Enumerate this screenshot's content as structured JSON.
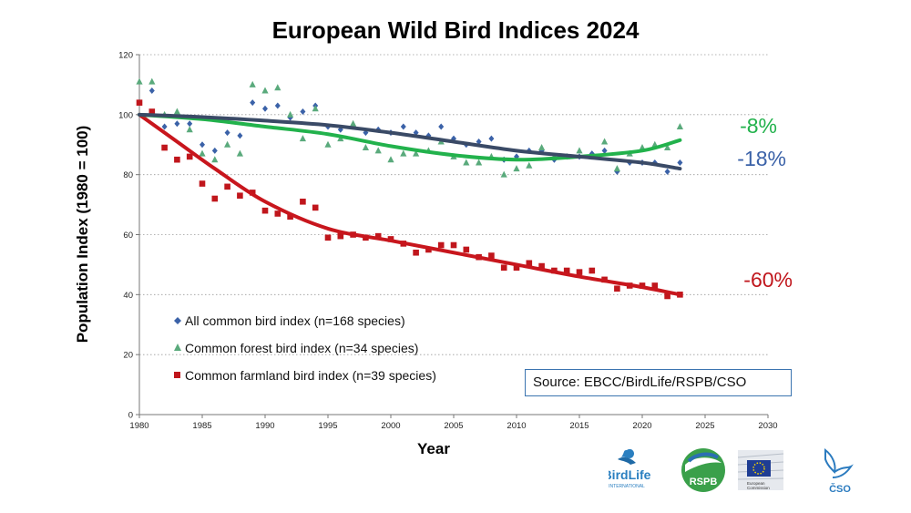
{
  "chart_data": {
    "type": "scatter",
    "title": "European Wild Bird Indices 2024",
    "xlabel": "Year",
    "ylabel": "Population Index (1980 = 100)",
    "xlim": [
      1980,
      2030
    ],
    "ylim": [
      0,
      120
    ],
    "x_ticks": [
      "1980",
      "1985",
      "1990",
      "1995",
      "2000",
      "2005",
      "2010",
      "2015",
      "2020",
      "2025",
      "2030"
    ],
    "y_ticks": [
      "0",
      "20",
      "40",
      "60",
      "80",
      "100",
      "120"
    ],
    "grid": "horizontal dotted",
    "legend_position": "bottom-left",
    "series": [
      {
        "name": "All common bird index (n=168 species)",
        "marker": "diamond",
        "color": "#3b62a8",
        "trend_color": "#3a4a66",
        "change_label": "-18%",
        "x": [
          1980,
          1981,
          1982,
          1983,
          1984,
          1985,
          1986,
          1987,
          1988,
          1989,
          1990,
          1991,
          1992,
          1993,
          1994,
          1995,
          1996,
          1997,
          1998,
          1999,
          2000,
          2001,
          2002,
          2003,
          2004,
          2005,
          2006,
          2007,
          2008,
          2009,
          2010,
          2011,
          2012,
          2013,
          2014,
          2015,
          2016,
          2017,
          2018,
          2019,
          2020,
          2021,
          2022,
          2023
        ],
        "y": [
          104,
          108,
          96,
          97,
          97,
          90,
          88,
          94,
          93,
          104,
          102,
          103,
          99,
          101,
          103,
          96,
          95,
          96,
          94,
          95,
          94,
          96,
          94,
          93,
          96,
          92,
          90,
          91,
          92,
          85,
          86,
          88,
          88,
          85,
          86,
          86,
          87,
          88,
          81,
          84,
          84,
          84,
          81,
          84
        ],
        "trend_x": [
          1980,
          1985,
          1990,
          1995,
          2000,
          2005,
          2010,
          2015,
          2020,
          2023
        ],
        "trend_y": [
          100,
          99.2,
          98,
          96.5,
          94,
          91,
          88,
          86,
          84,
          82
        ]
      },
      {
        "name": "Common forest bird index (n=34 species)",
        "marker": "triangle",
        "color": "#5aaa7c",
        "trend_color": "#22b24c",
        "change_label": "-8%",
        "x": [
          1980,
          1981,
          1982,
          1983,
          1984,
          1985,
          1986,
          1987,
          1988,
          1989,
          1990,
          1991,
          1992,
          1993,
          1994,
          1995,
          1996,
          1997,
          1998,
          1999,
          2000,
          2001,
          2002,
          2003,
          2004,
          2005,
          2006,
          2007,
          2008,
          2009,
          2010,
          2011,
          2012,
          2013,
          2014,
          2015,
          2016,
          2017,
          2018,
          2019,
          2020,
          2021,
          2022,
          2023
        ],
        "y": [
          111,
          111,
          100,
          101,
          95,
          87,
          85,
          90,
          87,
          110,
          108,
          109,
          100,
          92,
          102,
          90,
          92,
          97,
          89,
          88,
          85,
          87,
          87,
          88,
          91,
          86,
          84,
          84,
          86,
          80,
          82,
          83,
          89,
          86,
          86,
          88,
          86,
          91,
          82,
          87,
          89,
          90,
          89,
          96
        ],
        "trend_x": [
          1980,
          1985,
          1990,
          1995,
          2000,
          2005,
          2010,
          2015,
          2020,
          2023
        ],
        "trend_y": [
          100,
          98.5,
          96,
          93.5,
          89.5,
          86.5,
          85,
          86,
          88,
          91.5
        ]
      },
      {
        "name": "Common farmland bird index (n=39 species)",
        "marker": "square",
        "color": "#c0161c",
        "trend_color": "#c8161d",
        "change_label": "-60%",
        "x": [
          1980,
          1981,
          1982,
          1983,
          1984,
          1985,
          1986,
          1987,
          1988,
          1989,
          1990,
          1991,
          1992,
          1993,
          1994,
          1995,
          1996,
          1997,
          1998,
          1999,
          2000,
          2001,
          2002,
          2003,
          2004,
          2005,
          2006,
          2007,
          2008,
          2009,
          2010,
          2011,
          2012,
          2013,
          2014,
          2015,
          2016,
          2017,
          2018,
          2019,
          2020,
          2021,
          2022,
          2023
        ],
        "y": [
          104,
          101,
          89,
          85,
          86,
          77,
          72,
          76,
          73,
          74,
          68,
          67,
          66,
          71,
          69,
          59,
          59.5,
          60,
          59,
          59.5,
          58.5,
          57,
          54,
          55,
          56.5,
          56.5,
          55,
          52.5,
          53,
          49,
          49,
          50.5,
          49.5,
          48,
          48,
          47.5,
          48,
          45,
          42,
          43,
          43,
          43,
          39.5,
          40
        ],
        "trend_x": [
          1980,
          1983,
          1986,
          1990,
          1995,
          2000,
          2005,
          2010,
          2015,
          2020,
          2023
        ],
        "trend_y": [
          100,
          91,
          82,
          71,
          62,
          58,
          54,
          50,
          46,
          42.5,
          40
        ]
      }
    ]
  },
  "source_text": "Source: EBCC/BirdLife/RSPB/CSO",
  "logos": {
    "birdlife": "BirdLife",
    "birdlife_sub": "INTERNATIONAL",
    "rspb": "RSPB",
    "ec_line1": "European",
    "ec_line2": "Commission",
    "cso": "ČSO"
  }
}
